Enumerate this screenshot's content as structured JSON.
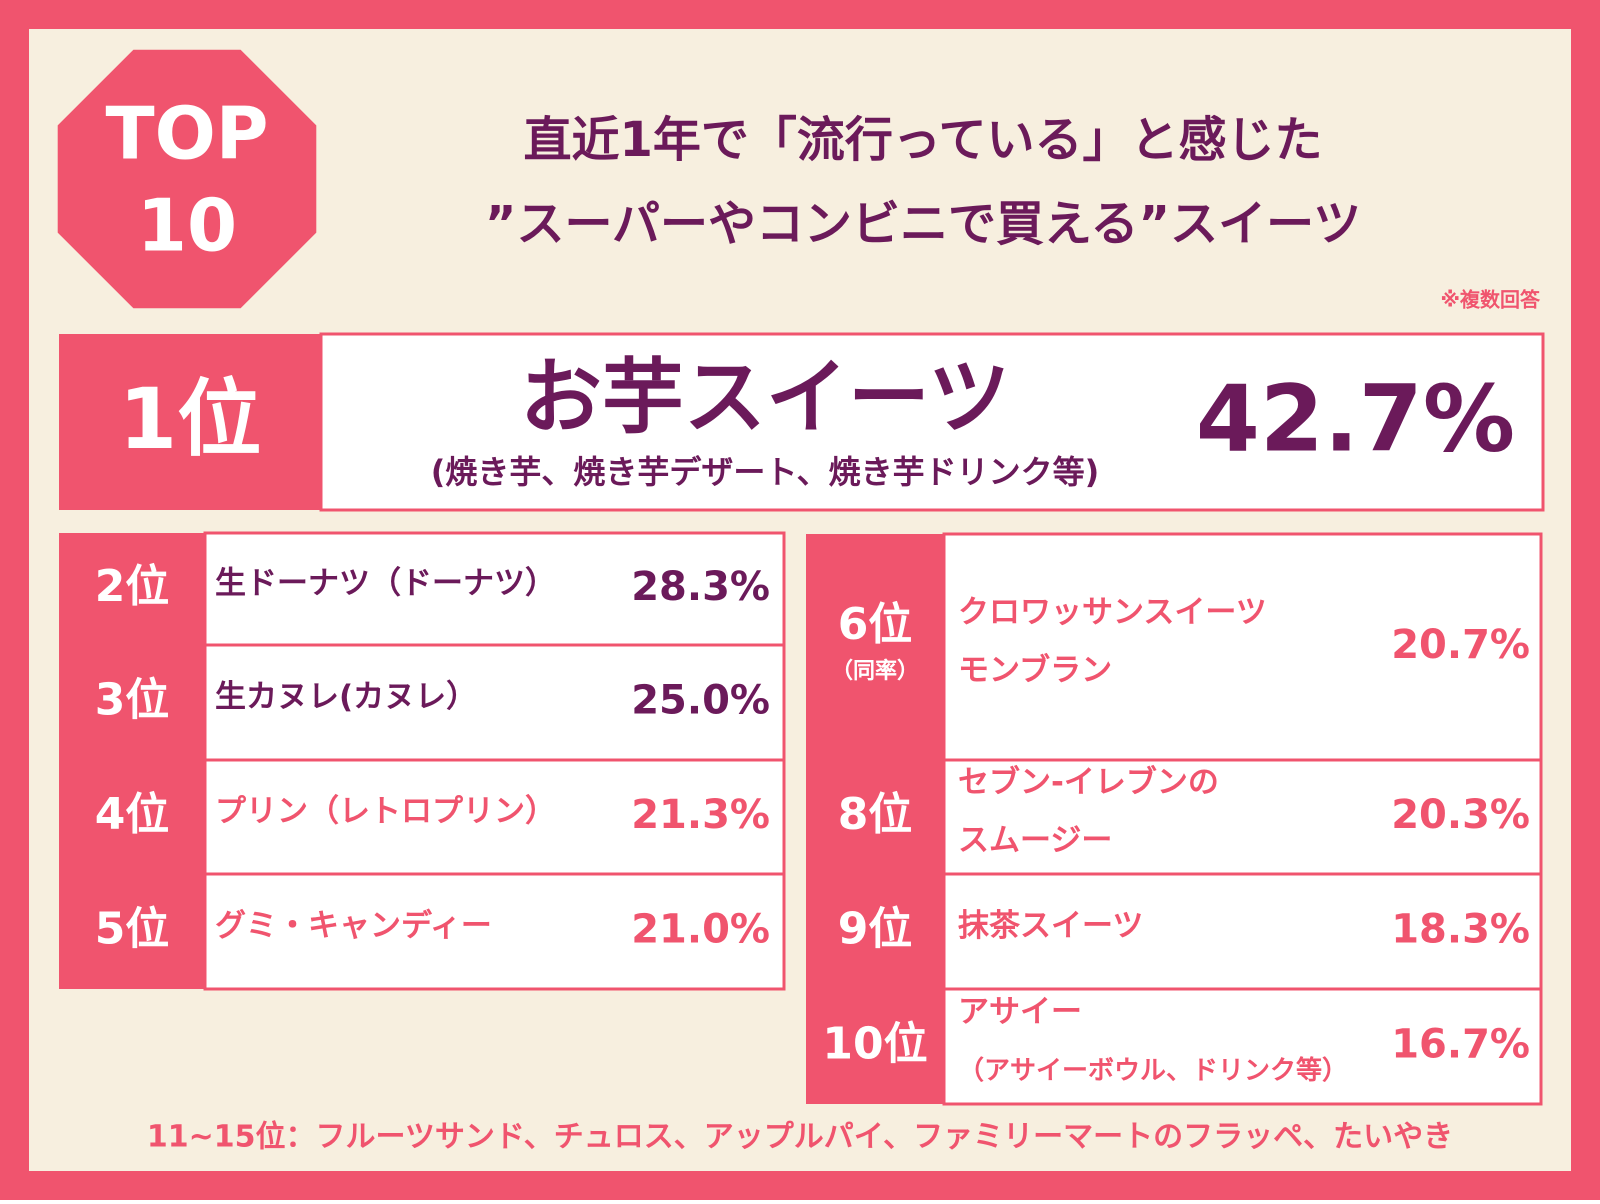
{
  "header": {
    "badge": [
      "TOP",
      "10"
    ],
    "title": [
      "直近1年で「流行っている」と感じた",
      "”スーパーやコンビニで買える”スイーツ"
    ],
    "note": "※複数回答"
  },
  "top": {
    "rank": "1位",
    "name": "お芋スイーツ",
    "detail": "(焼き芋、焼き芋デザート、焼き芋ドリンク等)",
    "percent": "42.7%"
  },
  "left": [
    {
      "rank": "2位",
      "name": "生ドーナツ（ドーナツ）",
      "percent": "28.3%"
    },
    {
      "rank": "3位",
      "name": "生カヌレ(カヌレ）",
      "percent": "25.0%"
    },
    {
      "rank": "4位",
      "name": "プリン（レトロプリン）",
      "percent": "21.3%"
    },
    {
      "rank": "5位",
      "name": "グミ・キャンディー",
      "percent": "21.0%"
    }
  ],
  "right": [
    {
      "rank": "6位",
      "note": "（同率）",
      "names": [
        "クロワッサンスイーツ",
        "モンブラン"
      ],
      "percent": "20.7%"
    },
    {
      "rank": "8位",
      "names": [
        "セブン-イレブンの",
        "スムージー"
      ],
      "percent": "20.3%"
    },
    {
      "rank": "9位",
      "names": [
        "抹茶スイーツ"
      ],
      "percent": "18.3%"
    },
    {
      "rank": "10位",
      "names": [
        "アサイー"
      ],
      "detail": "（アサイーボウル、ドリンク等）",
      "percent": "16.7%"
    }
  ],
  "footer": "11~15位：フルーツサンド、チュロス、アップルパイ、ファミリーマートのフラッペ、たいやき"
}
